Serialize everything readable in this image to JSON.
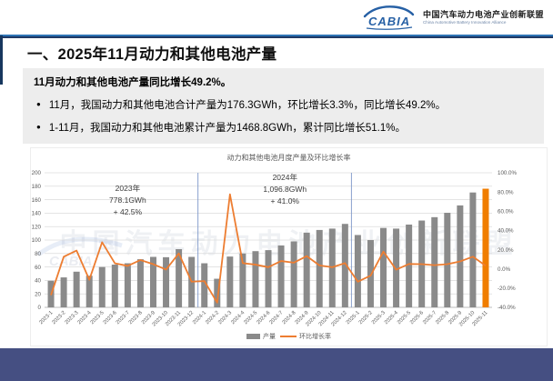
{
  "header": {
    "logo_text": "CABIA",
    "org_name_zh": "中国汽车动力电池产业创新联盟",
    "org_name_en": "China Automotive Battery Innovation Alliance"
  },
  "title": "一、2025年11月动力和其他电池产量",
  "summary": {
    "headline": "11月动力和其他电池产量同比增长49.2%。",
    "bullets": [
      "11月，我国动力和其他电池合计产量为176.3GWh，环比增长3.3%，同比增长49.2%。",
      "1-11月，我国动力和其他电池累计产量为1468.8GWh，累计同比增长51.1%。"
    ]
  },
  "chart_data": {
    "type": "bar+line",
    "title": "动力和其他电池月度产量及环比增长率",
    "categories": [
      "2023-1",
      "2023-2",
      "2023-3",
      "2023-4",
      "2023-5",
      "2023-6",
      "2023-7",
      "2023-8",
      "2023-9",
      "2023-10",
      "2023-11",
      "2023-12",
      "2024-1",
      "2024-2",
      "2024-3",
      "2024-4",
      "2024-5",
      "2024-6",
      "2024-7",
      "2024-8",
      "2024-9",
      "2024-10",
      "2024-11",
      "2024-12",
      "2025-1",
      "2025-2",
      "2025-3",
      "2025-4",
      "2025-5",
      "2025-6",
      "2025-7",
      "2025-8",
      "2025-9",
      "2025-10",
      "2025-11"
    ],
    "series": [
      {
        "name": "产量",
        "type": "bar",
        "unit": "GWh",
        "axis": "left",
        "values": [
          39.5,
          44.5,
          53,
          47,
          60,
          63.5,
          65.5,
          71.5,
          75,
          74.5,
          86.5,
          75,
          65.5,
          42.5,
          75.5,
          80,
          83.5,
          85,
          92,
          98,
          111,
          115,
          117,
          124,
          107.5,
          100,
          118,
          117,
          123,
          129,
          134,
          140.5,
          151.5,
          170.7,
          176.3
        ]
      },
      {
        "name": "环比增长率",
        "type": "line",
        "unit": "%",
        "axis": "right",
        "values": [
          -27.3,
          12.7,
          19.1,
          -11.3,
          27.7,
          5.8,
          3.1,
          9.2,
          4.9,
          -0.7,
          16.1,
          -13.3,
          -12.7,
          -35.1,
          77.6,
          6,
          4.4,
          1.8,
          8.2,
          6.5,
          13.3,
          3.6,
          1.7,
          6,
          -13.3,
          -7,
          18,
          -0.8,
          5.1,
          4.9,
          3.9,
          4.9,
          7.8,
          12.7,
          3.3
        ]
      }
    ],
    "left_axis": {
      "min": 0,
      "max": 200,
      "tick_values": [
        0,
        20,
        40,
        60,
        80,
        100,
        120,
        140,
        160,
        180,
        200
      ],
      "tick_labels": [
        "0",
        "20",
        "40",
        "60",
        "80",
        "100",
        "120",
        "140",
        "160",
        "180",
        "200"
      ]
    },
    "right_axis": {
      "min": -40,
      "max": 100,
      "tick_values": [
        -40,
        -20,
        0,
        20,
        40,
        60,
        80,
        100
      ],
      "tick_labels": [
        "-40.0%",
        "-20.0%",
        "0.0%",
        "20.0%",
        "40.0%",
        "60.0%",
        "80.0%",
        "100.0%"
      ]
    },
    "annotations": [
      {
        "label": "2023年",
        "value": "778.1GWh",
        "growth": "+ 42.5%",
        "anchor_index": 6
      },
      {
        "label": "2024年",
        "value": "1,096.8GWh",
        "growth": "+ 41.0%",
        "anchor_index": 18.3
      }
    ],
    "separators_after_index": [
      11,
      23
    ],
    "highlight_index": 34,
    "grid": true,
    "legend_position": "bottom",
    "colors": {
      "bar": "#8A8A8A",
      "bar_highlight": "#F07D00",
      "line": "#ED7D31",
      "separator": "#7C96C9",
      "grid": "#DCDCDC"
    },
    "watermark": "中国汽车动力电池产业创新联盟"
  }
}
